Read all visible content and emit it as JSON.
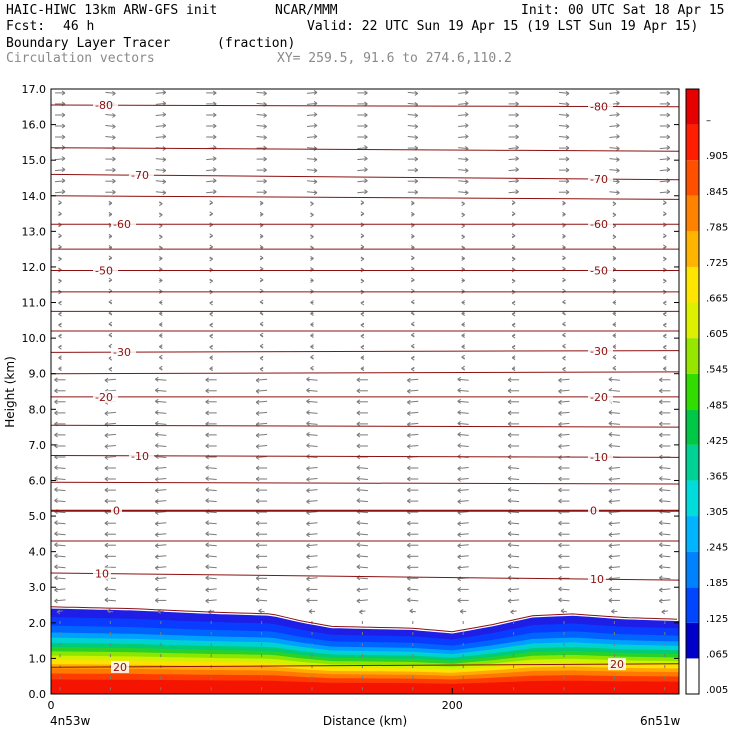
{
  "header": {
    "title": "HAIC-HIWC 13km ARW-GFS init",
    "org": "NCAR/MMM",
    "init": "Init: 00 UTC Sat 18 Apr 15",
    "fcst_label": "Fcst:",
    "fcst_value": "46 h",
    "valid": "Valid: 22 UTC Sun 19 Apr 15 (19 LST Sun 19 Apr 15)",
    "field": "Boundary Layer Tracer",
    "units": "(fraction)",
    "overlay": "Circulation vectors",
    "xy": "XY= 259.5, 91.6 to 274.6,110.2"
  },
  "chart_data": {
    "type": "heatmap",
    "xlabel": "Distance (km)",
    "ylabel": "Height (km)",
    "xlim": [
      0,
      313
    ],
    "ylim": [
      0,
      17
    ],
    "x_ticks": [
      0,
      200
    ],
    "x_tick_labels": [
      "0",
      "200"
    ],
    "x_end_labels": [
      "4n53w",
      "6n51w"
    ],
    "y_ticks": [
      0.0,
      1.0,
      2.0,
      3.0,
      4.0,
      5.0,
      6.0,
      7.0,
      8.0,
      9.0,
      10.0,
      11.0,
      12.0,
      13.0,
      14.0,
      15.0,
      16.0,
      17.0
    ],
    "y_tick_labels": [
      "0.0",
      "1.0",
      "2.0",
      "3.0",
      "4.0",
      "5.0",
      "6.0",
      "7.0",
      "8.0",
      "9.0",
      "10.0",
      "11.0",
      "12.0",
      "13.0",
      "14.0",
      "15.0",
      "16.0",
      "17.0"
    ],
    "colorbar": {
      "labels": [
        ".005",
        ".065",
        ".125",
        ".185",
        ".245",
        ".305",
        ".365",
        ".425",
        ".485",
        ".545",
        ".605",
        ".665",
        ".725",
        ".785",
        ".845",
        ".905",
        "–"
      ],
      "colors": [
        "#ffffff",
        "#0000c8",
        "#0046ff",
        "#0082ff",
        "#00b4ff",
        "#00dcdc",
        "#00d296",
        "#00c846",
        "#32dc00",
        "#96e600",
        "#dcf000",
        "#ffe600",
        "#ffb400",
        "#ff8200",
        "#ff5000",
        "#ff1e00",
        "#e60000"
      ]
    },
    "tracer_top_km": [
      [
        0,
        2.4
      ],
      [
        40,
        2.35
      ],
      [
        80,
        2.25
      ],
      [
        110,
        2.2
      ],
      [
        125,
        2.0
      ],
      [
        140,
        1.85
      ],
      [
        180,
        1.8
      ],
      [
        200,
        1.7
      ],
      [
        220,
        1.9
      ],
      [
        240,
        2.15
      ],
      [
        260,
        2.2
      ],
      [
        285,
        2.1
      ],
      [
        313,
        2.05
      ]
    ],
    "isotherms": [
      {
        "label": "-80",
        "h_left": 16.55,
        "h_right": 16.5,
        "show": true
      },
      {
        "label": "",
        "h_left": 15.35,
        "h_right": 15.25,
        "show": false
      },
      {
        "label": "-70",
        "h_left": 14.6,
        "h_right": 14.45,
        "show": true
      },
      {
        "label": "",
        "h_left": 14.0,
        "h_right": 13.9,
        "show": false
      },
      {
        "label": "-60",
        "h_left": 13.2,
        "h_right": 13.2,
        "show": true
      },
      {
        "label": "",
        "h_left": 12.5,
        "h_right": 12.5,
        "show": false
      },
      {
        "label": "-50",
        "h_left": 11.9,
        "h_right": 11.9,
        "show": true
      },
      {
        "label": "",
        "h_left": 11.3,
        "h_right": 11.3,
        "show": false
      },
      {
        "label": "",
        "h_left": 10.75,
        "h_right": 10.75,
        "show": false
      },
      {
        "label": "",
        "h_left": 10.2,
        "h_right": 10.2,
        "show": false
      },
      {
        "label": "-30",
        "h_left": 9.6,
        "h_right": 9.65,
        "show": true
      },
      {
        "label": "",
        "h_left": 9.0,
        "h_right": 9.05,
        "show": false
      },
      {
        "label": "-20",
        "h_left": 8.35,
        "h_right": 8.35,
        "show": true
      },
      {
        "label": "",
        "h_left": 7.55,
        "h_right": 7.5,
        "show": false
      },
      {
        "label": "-10",
        "h_left": 6.7,
        "h_right": 6.65,
        "show": true
      },
      {
        "label": "",
        "h_left": 5.95,
        "h_right": 5.9,
        "show": false
      },
      {
        "label": "0",
        "h_left": 5.15,
        "h_right": 5.15,
        "show": true
      },
      {
        "label": "",
        "h_left": 4.3,
        "h_right": 4.3,
        "show": false
      },
      {
        "label": "10",
        "h_left": 3.4,
        "h_right": 3.2,
        "show": true
      },
      {
        "label": "20",
        "h_left": 0.75,
        "h_right": 0.85,
        "show": true
      }
    ]
  }
}
